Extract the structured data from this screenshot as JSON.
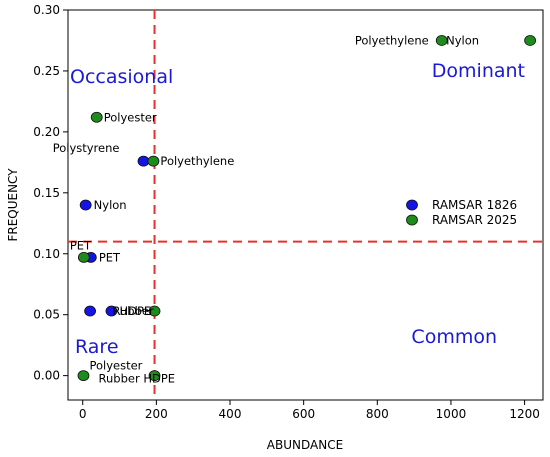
{
  "chart_data": {
    "type": "scatter",
    "xlabel": "ABUNDANCE",
    "ylabel": "FREQUENCY",
    "xlim": [
      -40,
      1250
    ],
    "ylim": [
      -0.02,
      0.3
    ],
    "x_ticks": [
      0,
      200,
      400,
      600,
      800,
      1000,
      1200
    ],
    "x_tick_labels": [
      "0",
      "200",
      "400",
      "600",
      "800",
      "1000",
      "1200"
    ],
    "y_ticks": [
      0.0,
      0.05,
      0.1,
      0.15,
      0.2,
      0.25,
      0.3
    ],
    "y_tick_labels": [
      "0.00",
      "0.05",
      "0.10",
      "0.15",
      "0.20",
      "0.25",
      "0.30"
    ],
    "grid": false,
    "legend_position": "right",
    "threshold_x": 195,
    "threshold_y": 0.11,
    "region_labels": [
      {
        "text": "Occasional",
        "position": "top-left"
      },
      {
        "text": "Dominant",
        "position": "top-right"
      },
      {
        "text": "Rare",
        "position": "bottom-left"
      },
      {
        "text": "Common",
        "position": "bottom-right"
      }
    ],
    "series": [
      {
        "name": "RAMSAR 1826",
        "color": "#1414e6",
        "points": [
          {
            "x": 165,
            "y": 0.176,
            "label": "Polystyrene"
          },
          {
            "x": 8,
            "y": 0.14,
            "label": "Nylon"
          },
          {
            "x": 22,
            "y": 0.097,
            "label": "PET"
          },
          {
            "x": 20,
            "y": 0.053,
            "label": ""
          },
          {
            "x": 78,
            "y": 0.053,
            "label": "HDPE"
          }
        ]
      },
      {
        "name": "RAMSAR 2025",
        "color": "#1d8c1d",
        "points": [
          {
            "x": 975,
            "y": 0.275,
            "label": "Polyethylene"
          },
          {
            "x": 1215,
            "y": 0.275,
            "label": "Nylon"
          },
          {
            "x": 38,
            "y": 0.212,
            "label": "Polyester"
          },
          {
            "x": 192,
            "y": 0.176,
            "label": "Polyethylene"
          },
          {
            "x": 3,
            "y": 0.097,
            "label": "PET"
          },
          {
            "x": 2,
            "y": 0.0,
            "label": "Polyester"
          },
          {
            "x": 195,
            "y": 0.053,
            "label": "Rubber"
          },
          {
            "x": 195,
            "y": 0.0,
            "label": "Rubber HDPE"
          }
        ]
      }
    ]
  }
}
